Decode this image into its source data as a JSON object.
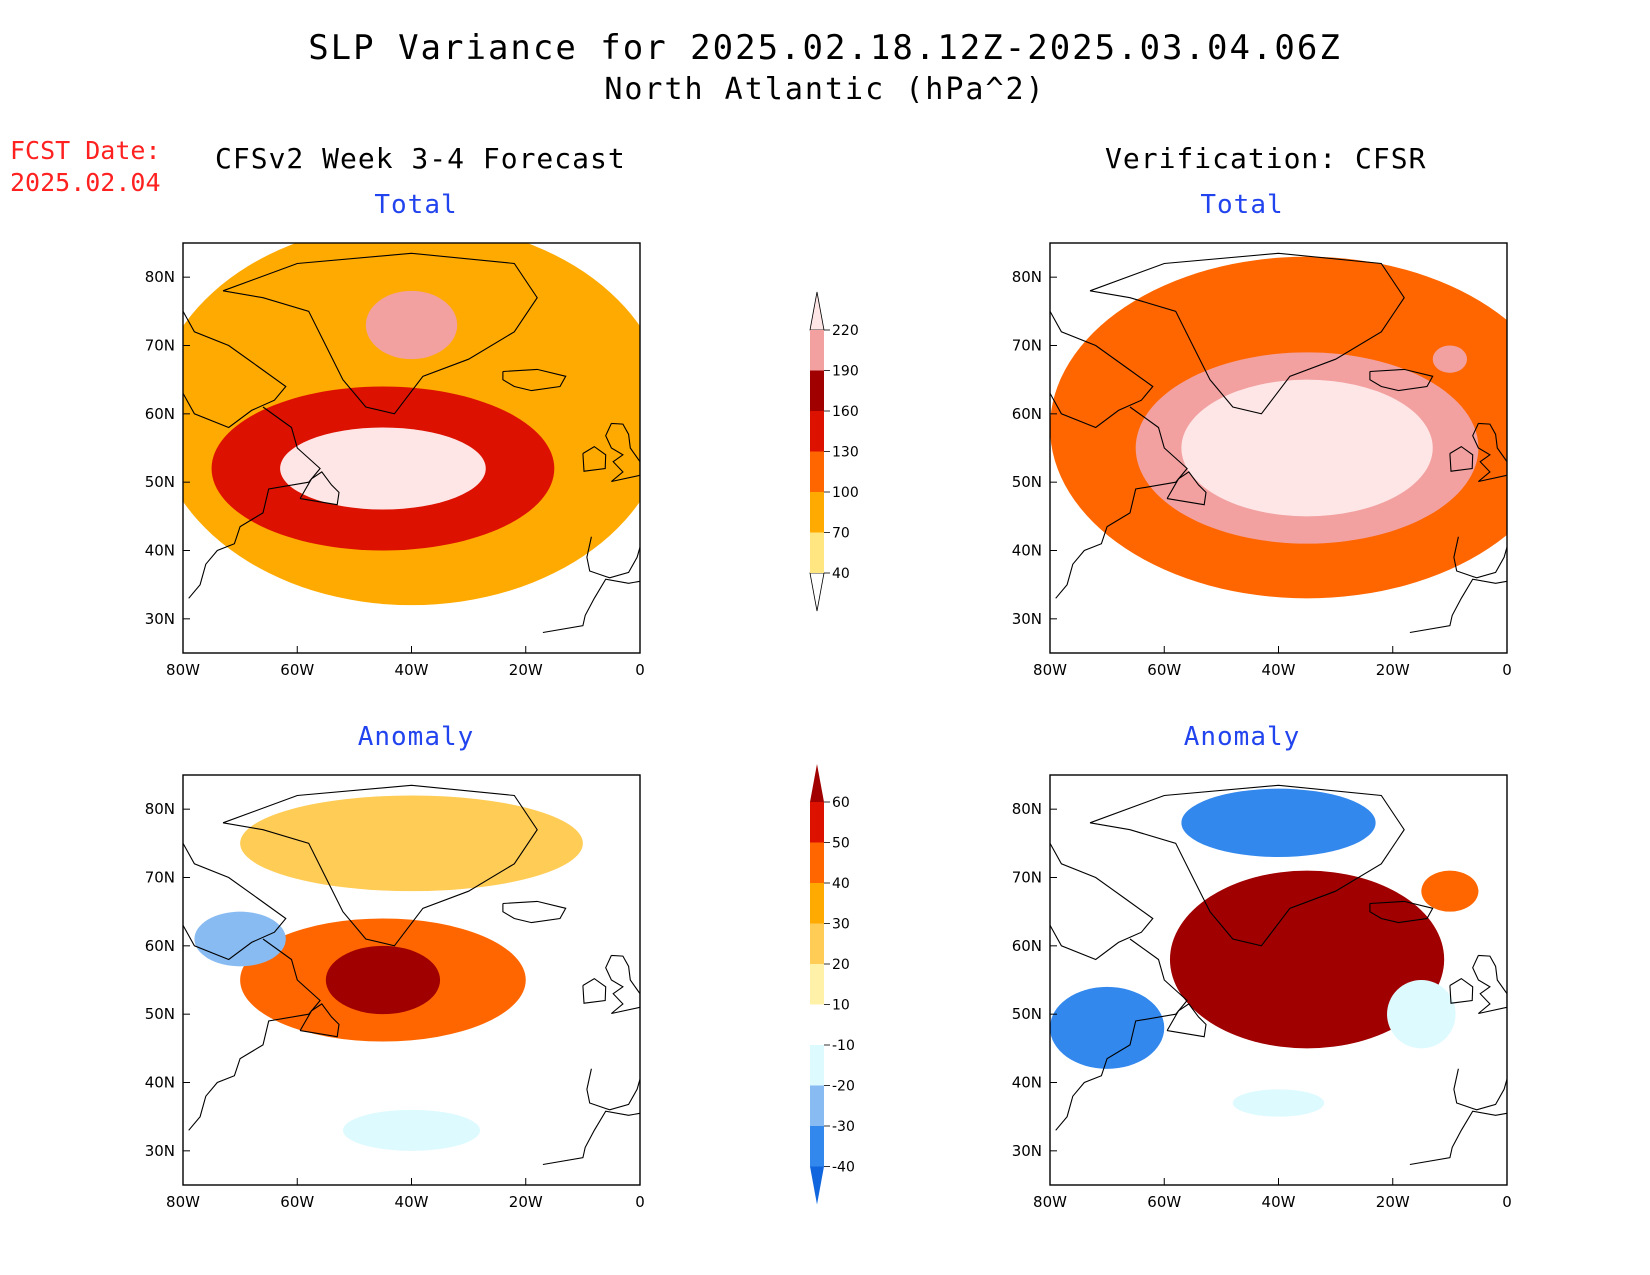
{
  "figure": {
    "title_line1": "SLP Variance for 2025.02.18.12Z-2025.03.04.06Z",
    "title_line2": "North Atlantic (hPa^2)",
    "forecast_date_label": "FCST Date:",
    "forecast_date_value": "2025.02.04",
    "left_column_title": "CFSv2 Week 3-4 Forecast",
    "right_column_title": "Verification: CFSR"
  },
  "panels": [
    {
      "id": "fcst-total",
      "title": "Total",
      "field": "total"
    },
    {
      "id": "verif-total",
      "title": "Total",
      "field": "total"
    },
    {
      "id": "fcst-anomaly",
      "title": "Anomaly",
      "field": "anomaly"
    },
    {
      "id": "verif-anomaly",
      "title": "Anomaly",
      "field": "anomaly"
    }
  ],
  "axes": {
    "lon_ticks": [
      "80W",
      "60W",
      "40W",
      "20W",
      "0"
    ],
    "lat_ticks": [
      "80N",
      "70N",
      "60N",
      "50N",
      "40N",
      "30N"
    ],
    "lon_range": [
      -80,
      0
    ],
    "lat_range": [
      25,
      85
    ]
  },
  "colorbars": {
    "total": {
      "levels": [
        "40",
        "70",
        "100",
        "130",
        "160",
        "190",
        "220"
      ],
      "colors": [
        "#ffffff",
        "#ffe680",
        "#ffaa00",
        "#ff6600",
        "#dd1100",
        "#a00000",
        "#f2a0a0",
        "#ffe6e6"
      ]
    },
    "anomaly": {
      "levels": [
        "-40",
        "-30",
        "-20",
        "-10",
        "10",
        "20",
        "30",
        "40",
        "50",
        "60"
      ],
      "colors": [
        "#1166dd",
        "#3388ee",
        "#88bbf2",
        "#ddfaff",
        "#ffffff",
        "#fff2a8",
        "#ffcc55",
        "#ffaa00",
        "#ff6600",
        "#dd1100",
        "#a00000"
      ]
    }
  },
  "chart_data": [
    {
      "type": "heatmap",
      "panel": "CFSv2 Week 3-4 Forecast - Total",
      "x": "longitude",
      "y": "latitude",
      "units": "hPa^2",
      "blobs": [
        {
          "lon": -40,
          "lat": 60,
          "rx": 45,
          "ry": 28,
          "value": 90
        },
        {
          "lon": -45,
          "lat": 52,
          "rx": 30,
          "ry": 12,
          "value": 150
        },
        {
          "lon": -45,
          "lat": 52,
          "rx": 18,
          "ry": 6,
          "value": 225
        },
        {
          "lon": -40,
          "lat": 73,
          "rx": 8,
          "ry": 5,
          "value": 200
        }
      ]
    },
    {
      "type": "heatmap",
      "panel": "Verification: CFSR - Total",
      "x": "longitude",
      "y": "latitude",
      "units": "hPa^2",
      "blobs": [
        {
          "lon": -35,
          "lat": 58,
          "rx": 45,
          "ry": 25,
          "value": 110
        },
        {
          "lon": -35,
          "lat": 55,
          "rx": 30,
          "ry": 14,
          "value": 200
        },
        {
          "lon": -35,
          "lat": 55,
          "rx": 22,
          "ry": 10,
          "value": 235
        },
        {
          "lon": -10,
          "lat": 68,
          "rx": 3,
          "ry": 2,
          "value": 200
        }
      ]
    },
    {
      "type": "heatmap",
      "panel": "CFSv2 Week 3-4 Forecast - Anomaly",
      "x": "longitude",
      "y": "latitude",
      "units": "hPa^2",
      "blobs": [
        {
          "lon": -45,
          "lat": 55,
          "rx": 25,
          "ry": 9,
          "value": 45
        },
        {
          "lon": -45,
          "lat": 55,
          "rx": 10,
          "ry": 5,
          "value": 65
        },
        {
          "lon": -40,
          "lat": 75,
          "rx": 30,
          "ry": 7,
          "value": 25
        },
        {
          "lon": -70,
          "lat": 61,
          "rx": 8,
          "ry": 4,
          "value": -30
        },
        {
          "lon": -40,
          "lat": 33,
          "rx": 12,
          "ry": 3,
          "value": -15
        }
      ]
    },
    {
      "type": "heatmap",
      "panel": "Verification: CFSR - Anomaly",
      "x": "longitude",
      "y": "latitude",
      "units": "hPa^2",
      "blobs": [
        {
          "lon": -35,
          "lat": 58,
          "rx": 24,
          "ry": 13,
          "value": 65
        },
        {
          "lon": -40,
          "lat": 78,
          "rx": 17,
          "ry": 5,
          "value": -35
        },
        {
          "lon": -70,
          "lat": 48,
          "rx": 10,
          "ry": 6,
          "value": -35
        },
        {
          "lon": -15,
          "lat": 50,
          "rx": 6,
          "ry": 5,
          "value": -20
        },
        {
          "lon": -10,
          "lat": 68,
          "rx": 5,
          "ry": 3,
          "value": 40
        },
        {
          "lon": -40,
          "lat": 37,
          "rx": 8,
          "ry": 2,
          "value": -20
        }
      ]
    }
  ]
}
